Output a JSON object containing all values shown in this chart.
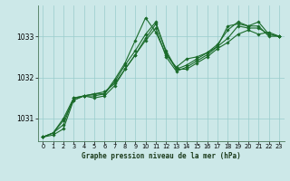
{
  "title": "Graphe pression niveau de la mer (hPa)",
  "bg_color": "#cce8e8",
  "grid_color": "#99cccc",
  "line_color": "#1a6b2a",
  "x_ticks": [
    0,
    1,
    2,
    3,
    4,
    5,
    6,
    7,
    8,
    9,
    10,
    11,
    12,
    13,
    14,
    15,
    16,
    17,
    18,
    19,
    20,
    21,
    22,
    23
  ],
  "ylim": [
    1030.45,
    1033.75
  ],
  "yticks": [
    1031,
    1032,
    1033
  ],
  "series": [
    [
      1030.55,
      1030.6,
      1030.75,
      1031.45,
      1031.55,
      1031.6,
      1031.65,
      1031.85,
      1032.2,
      1032.55,
      1032.95,
      1033.3,
      1032.65,
      1032.2,
      1032.2,
      1032.35,
      1032.5,
      1032.7,
      1032.85,
      1033.05,
      1033.15,
      1033.05,
      1033.1,
      1033.0
    ],
    [
      1030.55,
      1030.65,
      1030.95,
      1031.45,
      1031.55,
      1031.6,
      1031.6,
      1031.95,
      1032.35,
      1032.9,
      1033.45,
      1033.1,
      1032.55,
      1032.25,
      1032.45,
      1032.5,
      1032.6,
      1032.75,
      1033.25,
      1033.3,
      1033.25,
      1033.25,
      1033.0,
      1033.0
    ],
    [
      1030.55,
      1030.65,
      1030.85,
      1031.5,
      1031.55,
      1031.5,
      1031.55,
      1031.8,
      1032.2,
      1032.55,
      1032.9,
      1033.2,
      1032.5,
      1032.15,
      1032.25,
      1032.4,
      1032.55,
      1032.75,
      1032.95,
      1033.25,
      1033.2,
      1033.2,
      1033.05,
      1033.0
    ],
    [
      1030.55,
      1030.65,
      1031.0,
      1031.5,
      1031.55,
      1031.55,
      1031.6,
      1031.9,
      1032.3,
      1032.65,
      1033.05,
      1033.35,
      1032.6,
      1032.2,
      1032.3,
      1032.45,
      1032.6,
      1032.8,
      1033.15,
      1033.35,
      1033.25,
      1033.35,
      1033.05,
      1033.0
    ]
  ],
  "figsize": [
    3.2,
    2.0
  ],
  "dpi": 100
}
